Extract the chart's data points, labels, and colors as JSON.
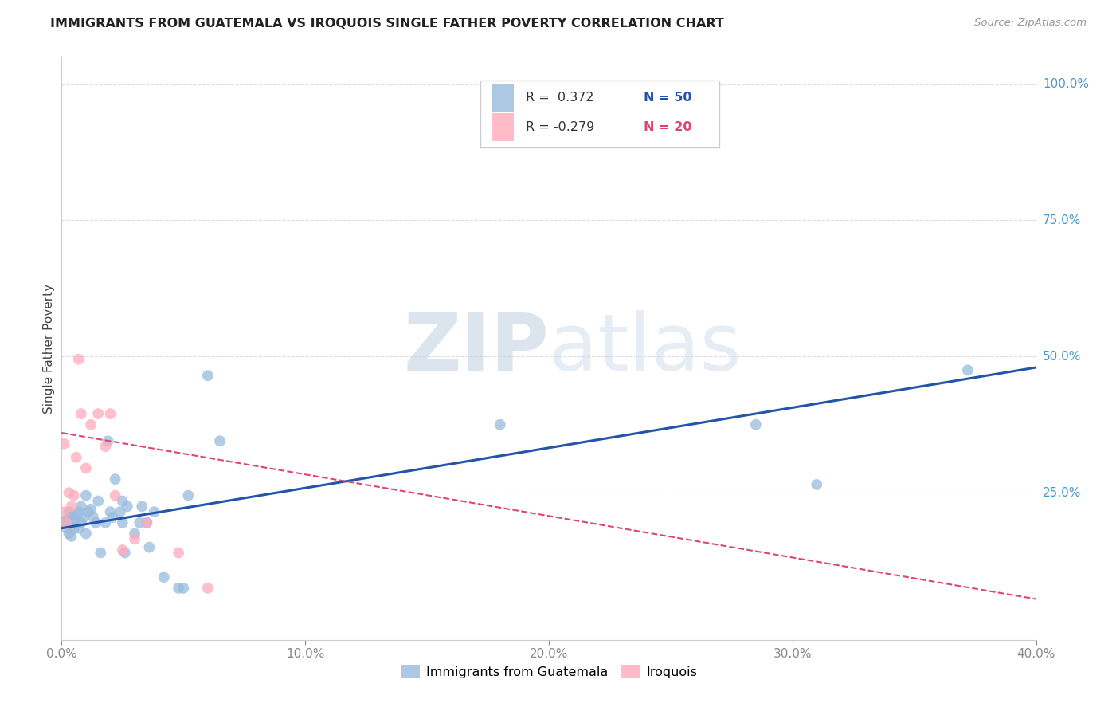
{
  "title": "IMMIGRANTS FROM GUATEMALA VS IROQUOIS SINGLE FATHER POVERTY CORRELATION CHART",
  "source": "Source: ZipAtlas.com",
  "ylabel": "Single Father Poverty",
  "ytick_labels": [
    "100.0%",
    "75.0%",
    "50.0%",
    "25.0%"
  ],
  "ytick_values": [
    1.0,
    0.75,
    0.5,
    0.25
  ],
  "xlim": [
    0.0,
    0.4
  ],
  "ylim": [
    -0.02,
    1.05
  ],
  "blue_scatter_x": [
    0.001,
    0.002,
    0.002,
    0.003,
    0.003,
    0.004,
    0.004,
    0.005,
    0.005,
    0.006,
    0.006,
    0.007,
    0.007,
    0.008,
    0.008,
    0.009,
    0.01,
    0.01,
    0.011,
    0.012,
    0.013,
    0.014,
    0.015,
    0.016,
    0.018,
    0.019,
    0.02,
    0.021,
    0.022,
    0.024,
    0.025,
    0.025,
    0.026,
    0.027,
    0.03,
    0.032,
    0.033,
    0.035,
    0.036,
    0.038,
    0.042,
    0.048,
    0.05,
    0.052,
    0.06,
    0.065,
    0.18,
    0.285,
    0.31,
    0.372
  ],
  "blue_scatter_y": [
    0.195,
    0.185,
    0.2,
    0.175,
    0.215,
    0.17,
    0.21,
    0.195,
    0.185,
    0.2,
    0.21,
    0.215,
    0.185,
    0.195,
    0.225,
    0.205,
    0.175,
    0.245,
    0.215,
    0.22,
    0.205,
    0.195,
    0.235,
    0.14,
    0.195,
    0.345,
    0.215,
    0.205,
    0.275,
    0.215,
    0.235,
    0.195,
    0.14,
    0.225,
    0.175,
    0.195,
    0.225,
    0.195,
    0.15,
    0.215,
    0.095,
    0.075,
    0.075,
    0.245,
    0.465,
    0.345,
    0.375,
    0.375,
    0.265,
    0.475
  ],
  "pink_scatter_x": [
    0.001,
    0.001,
    0.002,
    0.003,
    0.004,
    0.005,
    0.006,
    0.007,
    0.008,
    0.01,
    0.012,
    0.015,
    0.018,
    0.02,
    0.022,
    0.025,
    0.03,
    0.035,
    0.048,
    0.06
  ],
  "pink_scatter_y": [
    0.215,
    0.34,
    0.195,
    0.25,
    0.225,
    0.245,
    0.315,
    0.495,
    0.395,
    0.295,
    0.375,
    0.395,
    0.335,
    0.395,
    0.245,
    0.145,
    0.165,
    0.195,
    0.14,
    0.075
  ],
  "blue_line_x": [
    0.0,
    0.4
  ],
  "blue_line_y": [
    0.185,
    0.48
  ],
  "pink_line_x": [
    0.0,
    0.4
  ],
  "pink_line_y": [
    0.36,
    0.055
  ],
  "bg_color": "#ffffff",
  "blue_color": "#99bbdd",
  "pink_color": "#ffaabb",
  "blue_line_color": "#2255aa",
  "pink_line_color": "#dd4477",
  "axis_color": "#4499cc",
  "grid_color": "#dddddd",
  "title_color": "#222222",
  "source_color": "#999999",
  "legend_r1_label": "R =  0.372",
  "legend_n1_label": "N = 50",
  "legend_r2_label": "R = -0.279",
  "legend_n2_label": "N = 20",
  "watermark_zip": "ZIP",
  "watermark_atlas": "atlas"
}
